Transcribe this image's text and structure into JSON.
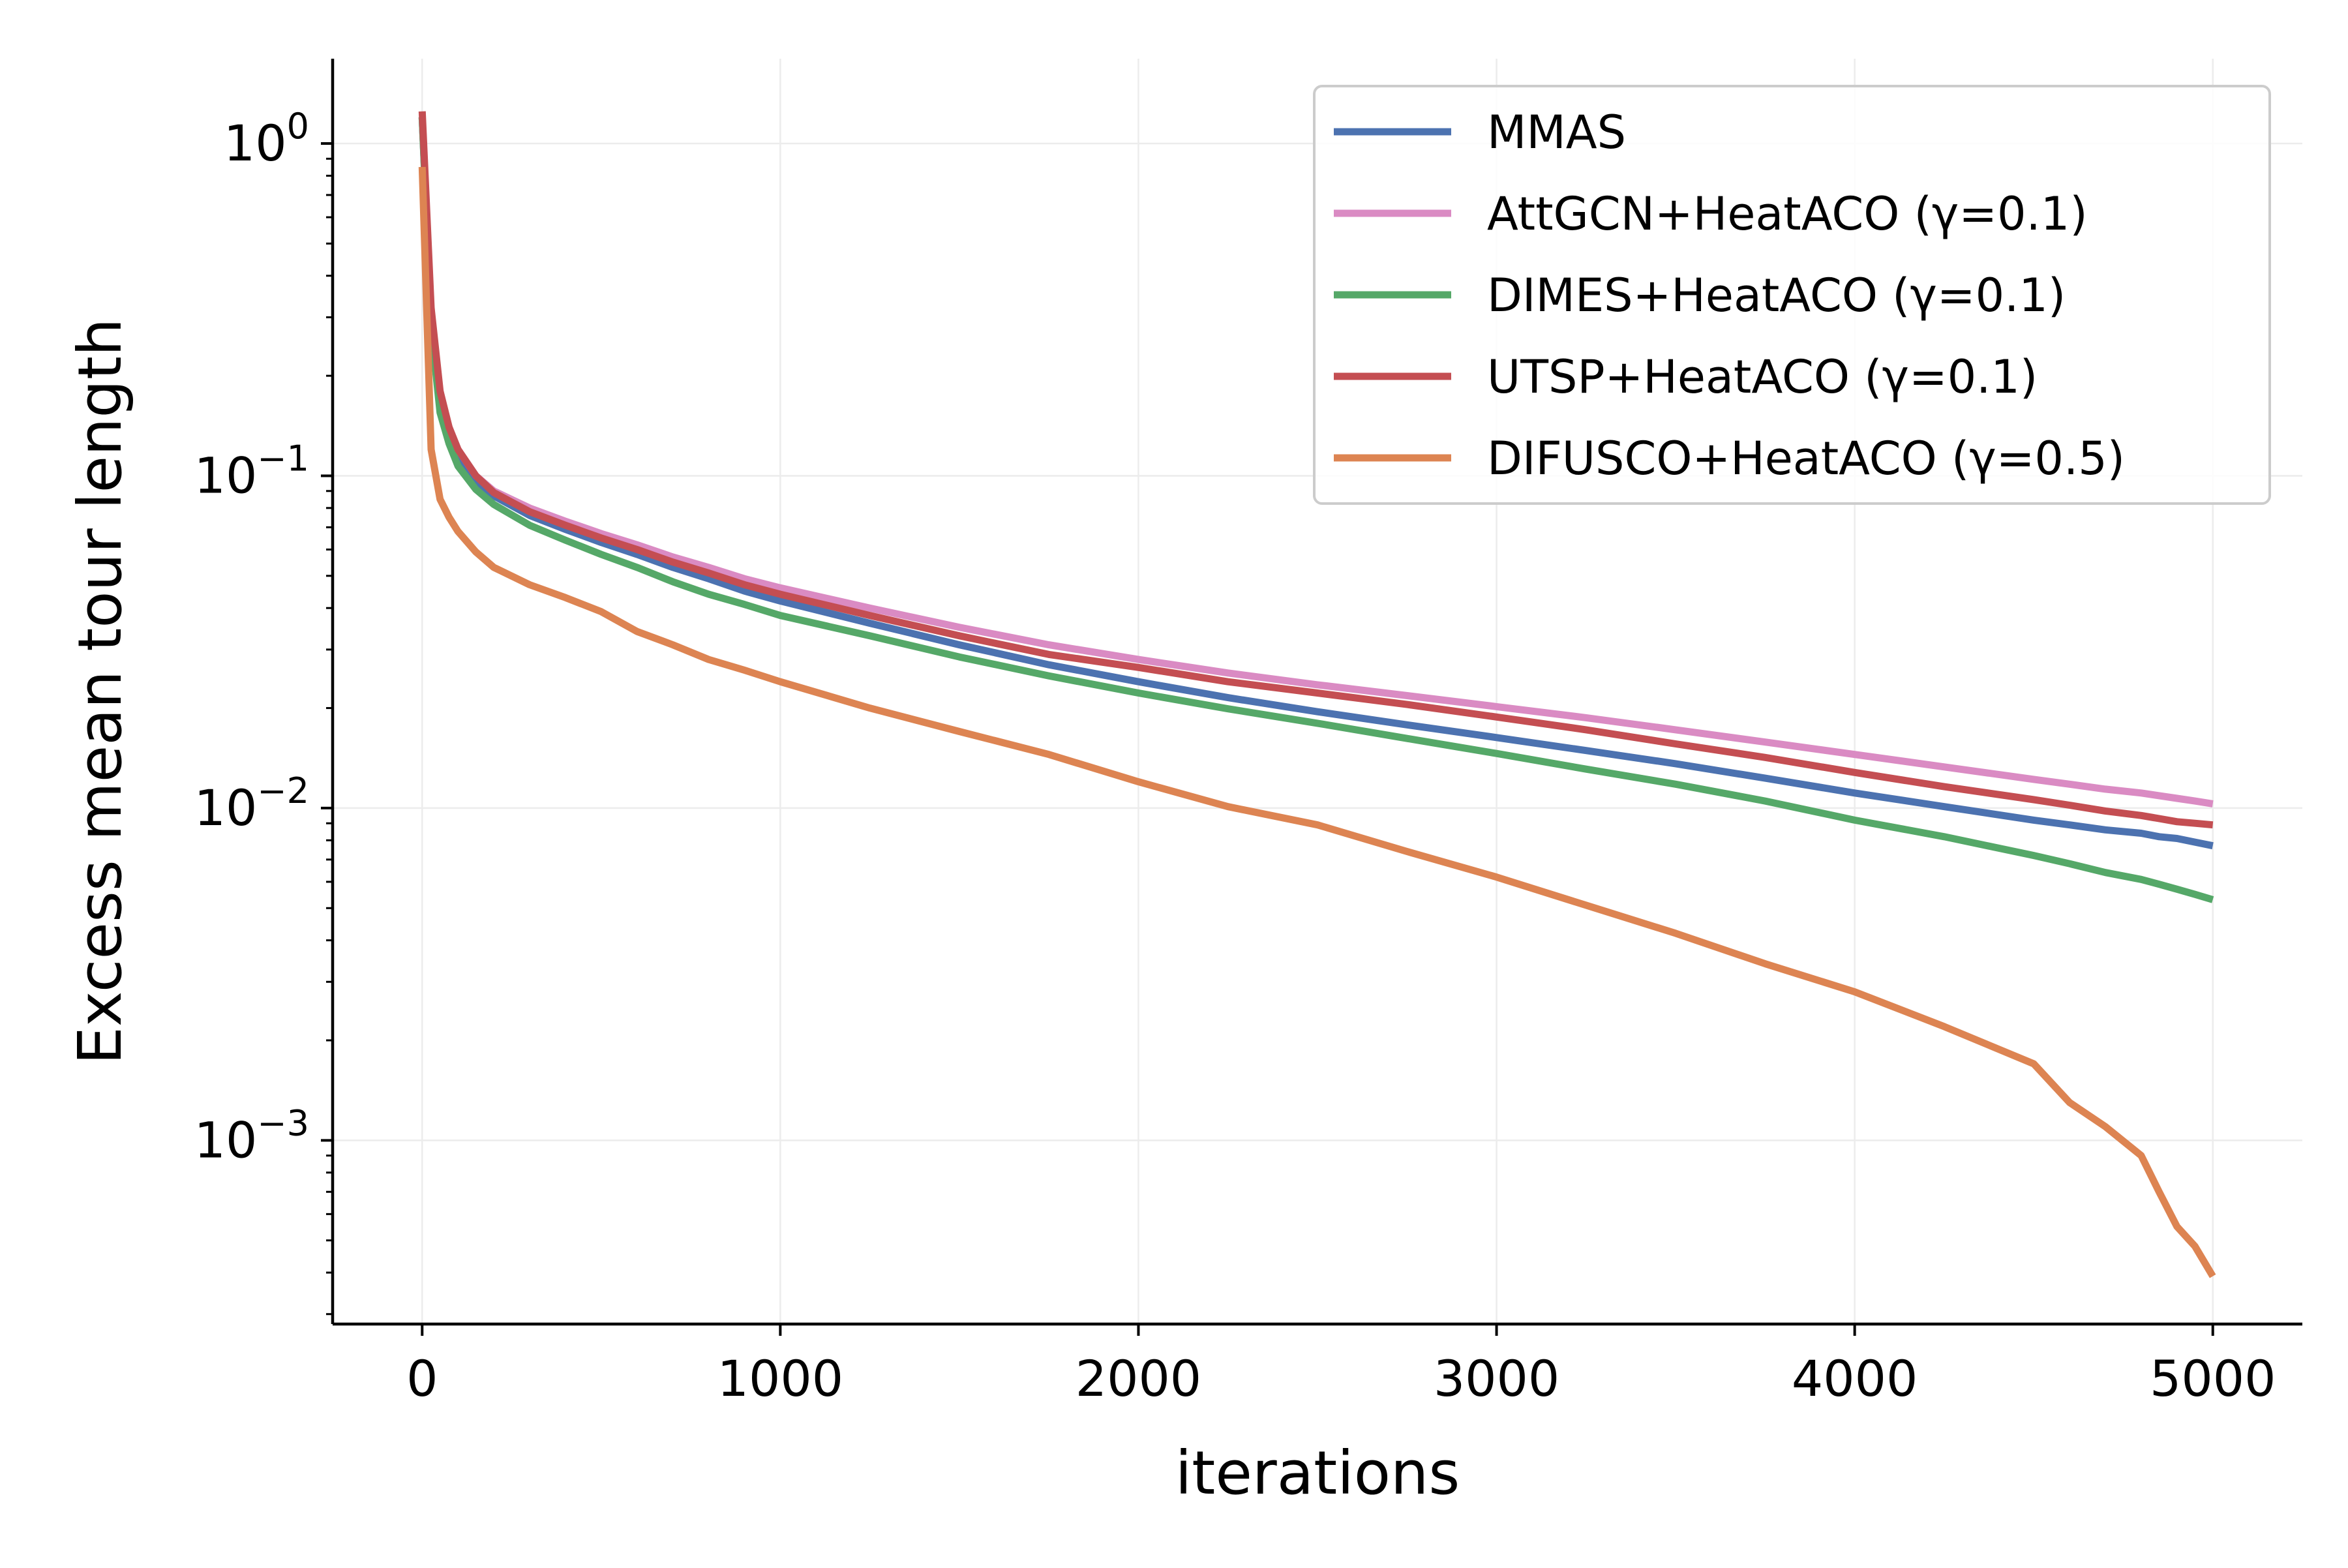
{
  "chart_data": {
    "type": "line",
    "title": "",
    "xlabel": "iterations",
    "ylabel": "Excess mean tour length",
    "xlim": [
      -250,
      5250
    ],
    "ylim": [
      0.00028,
      1.8
    ],
    "yscale": "log",
    "grid": true,
    "legend_position": "top-right",
    "x_ticks": [
      {
        "value": 0,
        "label": "0"
      },
      {
        "value": 1000,
        "label": "1000"
      },
      {
        "value": 2000,
        "label": "2000"
      },
      {
        "value": 3000,
        "label": "3000"
      },
      {
        "value": 4000,
        "label": "4000"
      },
      {
        "value": 5000,
        "label": "5000"
      }
    ],
    "y_ticks": [
      {
        "value": 1,
        "base": "10",
        "exp": "0"
      },
      {
        "value": 0.1,
        "base": "10",
        "exp": "−1"
      },
      {
        "value": 0.01,
        "base": "10",
        "exp": "−2"
      },
      {
        "value": 0.001,
        "base": "10",
        "exp": "−3"
      }
    ],
    "x": [
      0,
      25,
      50,
      75,
      100,
      150,
      200,
      300,
      400,
      500,
      600,
      700,
      800,
      900,
      1000,
      1250,
      1500,
      1750,
      2000,
      2250,
      2500,
      2750,
      3000,
      3250,
      3500,
      3750,
      4000,
      4250,
      4500,
      4600,
      4700,
      4800,
      4850,
      4900,
      4950,
      5000
    ],
    "series": [
      {
        "name": "MMAS",
        "color": "#4c72b0",
        "values": [
          1.2,
          0.3,
          0.17,
          0.135,
          0.115,
          0.097,
          0.087,
          0.076,
          0.069,
          0.063,
          0.058,
          0.053,
          0.049,
          0.045,
          0.042,
          0.036,
          0.031,
          0.027,
          0.024,
          0.0215,
          0.0195,
          0.0178,
          0.0163,
          0.0149,
          0.0136,
          0.0123,
          0.0111,
          0.0101,
          0.0092,
          0.0089,
          0.0086,
          0.0084,
          0.0082,
          0.0081,
          0.0079,
          0.0077
        ]
      },
      {
        "name": "AttGCN+HeatACO (γ=0.1)",
        "color": "#da8bc3",
        "values": [
          1.2,
          0.3,
          0.17,
          0.14,
          0.12,
          0.1,
          0.09,
          0.08,
          0.073,
          0.067,
          0.062,
          0.057,
          0.053,
          0.049,
          0.046,
          0.04,
          0.035,
          0.031,
          0.028,
          0.0255,
          0.0235,
          0.0218,
          0.0202,
          0.0187,
          0.0172,
          0.0158,
          0.0145,
          0.0133,
          0.0122,
          0.0118,
          0.0114,
          0.0111,
          0.0109,
          0.0107,
          0.0105,
          0.0103
        ]
      },
      {
        "name": "DIMES+HeatACO (γ=0.1)",
        "color": "#55a868",
        "values": [
          1.2,
          0.28,
          0.155,
          0.125,
          0.107,
          0.091,
          0.082,
          0.071,
          0.064,
          0.058,
          0.053,
          0.048,
          0.044,
          0.041,
          0.038,
          0.033,
          0.0285,
          0.025,
          0.0222,
          0.0199,
          0.018,
          0.0162,
          0.0146,
          0.0131,
          0.0118,
          0.0105,
          0.0092,
          0.0082,
          0.0072,
          0.0068,
          0.0064,
          0.0061,
          0.0059,
          0.0057,
          0.0055,
          0.0053
        ]
      },
      {
        "name": "UTSP+HeatACO (γ=0.1)",
        "color": "#c44e52",
        "values": [
          1.25,
          0.32,
          0.18,
          0.14,
          0.12,
          0.1,
          0.089,
          0.078,
          0.071,
          0.065,
          0.06,
          0.055,
          0.051,
          0.047,
          0.044,
          0.038,
          0.033,
          0.029,
          0.0265,
          0.024,
          0.0222,
          0.0205,
          0.0188,
          0.0172,
          0.0156,
          0.0142,
          0.0128,
          0.0116,
          0.0106,
          0.0102,
          0.0098,
          0.0095,
          0.0093,
          0.0091,
          0.009,
          0.0089
        ]
      },
      {
        "name": "DIFUSCO+HeatACO (γ=0.5)",
        "color": "#dd8452",
        "values": [
          0.85,
          0.12,
          0.085,
          0.075,
          0.068,
          0.059,
          0.053,
          0.047,
          0.043,
          0.039,
          0.034,
          0.031,
          0.028,
          0.026,
          0.024,
          0.02,
          0.017,
          0.0145,
          0.012,
          0.0101,
          0.0089,
          0.0074,
          0.0062,
          0.0051,
          0.0042,
          0.0034,
          0.0028,
          0.0022,
          0.0017,
          0.0013,
          0.0011,
          0.0009,
          0.0007,
          0.00055,
          0.00048,
          0.00039
        ]
      }
    ]
  }
}
